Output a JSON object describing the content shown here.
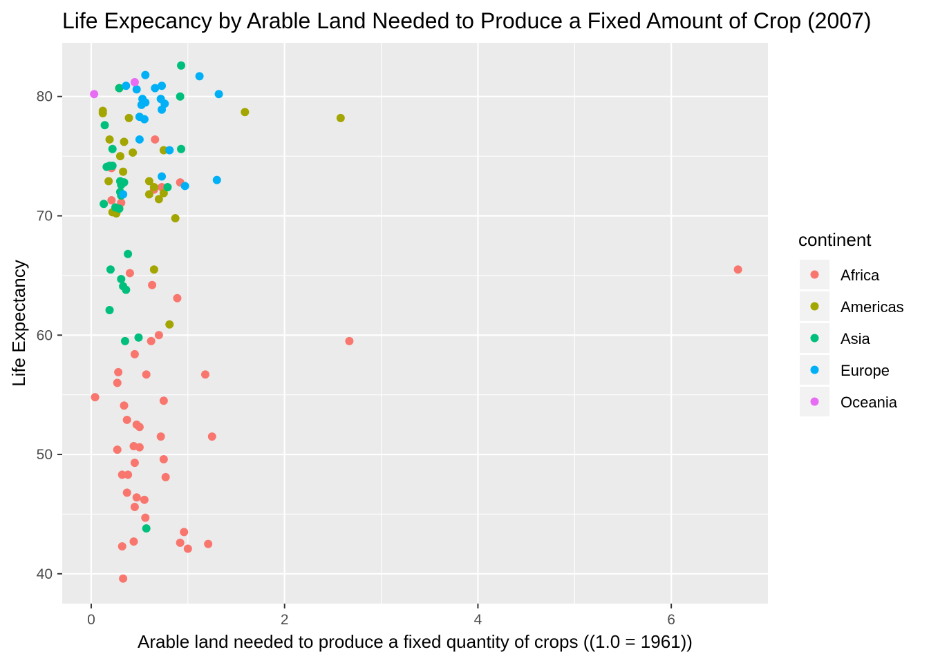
{
  "chart_data": {
    "type": "scatter",
    "title": "Life Expecancy by Arable Land Needed to Produce a Fixed Amount of Crop (2007)",
    "xlabel": "Arable land needed to produce a fixed quantity of crops ((1.0 = 1961))",
    "ylabel": "Life Expectancy",
    "xlim": [
      -0.3,
      7.0
    ],
    "ylim": [
      37.5,
      84.5
    ],
    "x_ticks": [
      0,
      2,
      4,
      6
    ],
    "y_ticks": [
      40,
      50,
      60,
      70,
      80
    ],
    "grid": true,
    "legend_position": "right",
    "legend_title": "continent",
    "series": [
      {
        "name": "Africa",
        "color": "#F8766D",
        "points": [
          [
            0.21,
            74.0
          ],
          [
            0.66,
            76.4
          ],
          [
            0.92,
            72.8
          ],
          [
            0.73,
            72.4
          ],
          [
            0.65,
            72.2
          ],
          [
            0.21,
            71.3
          ],
          [
            0.31,
            71.1
          ],
          [
            0.4,
            65.2
          ],
          [
            0.63,
            64.2
          ],
          [
            0.89,
            63.1
          ],
          [
            6.69,
            65.5
          ],
          [
            2.67,
            59.5
          ],
          [
            0.7,
            60.0
          ],
          [
            0.62,
            59.5
          ],
          [
            0.45,
            58.4
          ],
          [
            0.28,
            56.9
          ],
          [
            0.27,
            56.0
          ],
          [
            0.57,
            56.7
          ],
          [
            1.18,
            56.7
          ],
          [
            0.04,
            54.8
          ],
          [
            0.34,
            54.1
          ],
          [
            0.75,
            54.5
          ],
          [
            0.37,
            52.9
          ],
          [
            0.47,
            52.5
          ],
          [
            0.5,
            52.3
          ],
          [
            0.72,
            51.5
          ],
          [
            1.25,
            51.5
          ],
          [
            0.44,
            50.7
          ],
          [
            0.5,
            50.6
          ],
          [
            0.27,
            50.4
          ],
          [
            0.45,
            49.3
          ],
          [
            0.75,
            49.6
          ],
          [
            0.32,
            48.3
          ],
          [
            0.38,
            48.3
          ],
          [
            0.77,
            48.1
          ],
          [
            0.37,
            46.8
          ],
          [
            0.47,
            46.4
          ],
          [
            0.55,
            46.2
          ],
          [
            0.45,
            45.6
          ],
          [
            0.56,
            44.7
          ],
          [
            0.96,
            43.5
          ],
          [
            0.92,
            42.6
          ],
          [
            1.21,
            42.5
          ],
          [
            0.44,
            42.7
          ],
          [
            0.32,
            42.3
          ],
          [
            1.0,
            42.1
          ],
          [
            0.33,
            39.6
          ]
        ]
      },
      {
        "name": "Americas",
        "color": "#A3A500",
        "points": [
          [
            0.29,
            80.7
          ],
          [
            0.12,
            78.8
          ],
          [
            0.12,
            78.6
          ],
          [
            0.39,
            78.2
          ],
          [
            1.59,
            78.7
          ],
          [
            2.58,
            78.2
          ],
          [
            0.19,
            76.4
          ],
          [
            0.34,
            76.2
          ],
          [
            0.75,
            75.5
          ],
          [
            0.3,
            75.0
          ],
          [
            0.43,
            75.3
          ],
          [
            0.33,
            73.7
          ],
          [
            0.18,
            72.9
          ],
          [
            0.6,
            72.9
          ],
          [
            0.65,
            72.4
          ],
          [
            0.75,
            71.9
          ],
          [
            0.6,
            71.8
          ],
          [
            0.7,
            71.4
          ],
          [
            0.22,
            70.3
          ],
          [
            0.26,
            70.2
          ],
          [
            0.87,
            69.8
          ],
          [
            0.65,
            65.5
          ],
          [
            0.81,
            60.9
          ]
        ]
      },
      {
        "name": "Asia",
        "color": "#00BF7D",
        "points": [
          [
            0.93,
            82.6
          ],
          [
            0.29,
            80.7
          ],
          [
            0.92,
            80.0
          ],
          [
            0.14,
            77.6
          ],
          [
            0.22,
            75.6
          ],
          [
            0.93,
            75.6
          ],
          [
            0.16,
            74.1
          ],
          [
            0.22,
            74.2
          ],
          [
            0.19,
            74.2
          ],
          [
            0.3,
            72.9
          ],
          [
            0.34,
            72.8
          ],
          [
            0.31,
            72.6
          ],
          [
            0.79,
            72.4
          ],
          [
            0.3,
            72.0
          ],
          [
            0.31,
            71.7
          ],
          [
            0.13,
            71.0
          ],
          [
            0.25,
            70.7
          ],
          [
            0.29,
            70.6
          ],
          [
            0.38,
            66.8
          ],
          [
            0.2,
            65.5
          ],
          [
            0.31,
            64.7
          ],
          [
            0.33,
            64.1
          ],
          [
            0.36,
            63.8
          ],
          [
            0.19,
            62.1
          ],
          [
            0.49,
            59.8
          ],
          [
            0.35,
            59.5
          ],
          [
            0.57,
            43.8
          ]
        ]
      },
      {
        "name": "Europe",
        "color": "#00B0F6",
        "points": [
          [
            0.56,
            81.8
          ],
          [
            1.12,
            81.7
          ],
          [
            0.36,
            80.9
          ],
          [
            0.73,
            80.9
          ],
          [
            0.47,
            80.6
          ],
          [
            0.66,
            80.7
          ],
          [
            1.32,
            80.2
          ],
          [
            0.53,
            79.8
          ],
          [
            0.72,
            79.8
          ],
          [
            0.56,
            79.5
          ],
          [
            0.52,
            79.3
          ],
          [
            0.76,
            79.4
          ],
          [
            0.73,
            78.9
          ],
          [
            0.5,
            78.3
          ],
          [
            0.55,
            78.1
          ],
          [
            0.5,
            76.4
          ],
          [
            0.81,
            75.5
          ],
          [
            0.73,
            73.3
          ],
          [
            1.3,
            73.0
          ],
          [
            0.97,
            72.5
          ],
          [
            0.33,
            71.8
          ]
        ]
      },
      {
        "name": "Oceania",
        "color": "#E76BF3",
        "points": [
          [
            0.03,
            80.2
          ],
          [
            0.45,
            81.2
          ]
        ]
      }
    ]
  }
}
